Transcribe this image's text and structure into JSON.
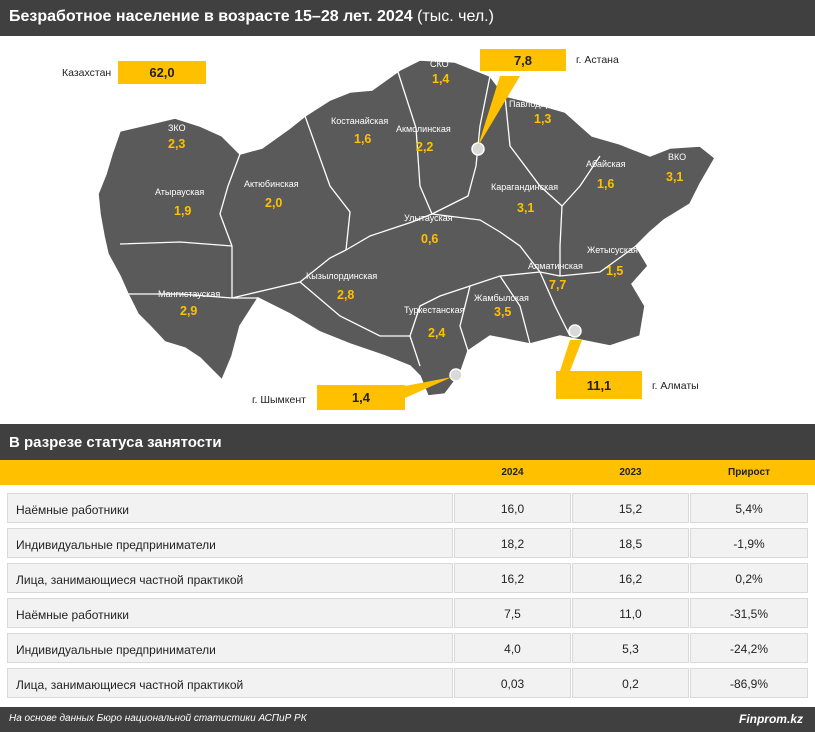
{
  "header": {
    "title_bold": "Безработное население в возрасте 15–28 лет. 2024",
    "title_unit": "(тыс. чел.)"
  },
  "colors": {
    "accent": "#ffc000",
    "dark": "#404040",
    "map_fill": "#5a5a5a",
    "map_border": "#ffffff"
  },
  "map": {
    "total": {
      "label": "Казахстан",
      "value": "62,0"
    },
    "regions": [
      {
        "name": "СКО",
        "value": "1,4"
      },
      {
        "name": "Костанайская",
        "value": "1,6"
      },
      {
        "name": "Акмолинская",
        "value": "2,2"
      },
      {
        "name": "Павлодарская",
        "value": "1,3"
      },
      {
        "name": "ЗКО",
        "value": "2,3"
      },
      {
        "name": "Атырауская",
        "value": "1,9"
      },
      {
        "name": "Актюбинская",
        "value": "2,0"
      },
      {
        "name": "Улытауская",
        "value": "0,6"
      },
      {
        "name": "Карагандинская",
        "value": "3,1"
      },
      {
        "name": "Абайская",
        "value": "1,6"
      },
      {
        "name": "ВКО",
        "value": "3,1"
      },
      {
        "name": "Жетысуская",
        "value": "1,5"
      },
      {
        "name": "Алматинская",
        "value": "7,7"
      },
      {
        "name": "Мангистауская",
        "value": "2,9"
      },
      {
        "name": "Кызылординская",
        "value": "2,8"
      },
      {
        "name": "Туркестанская",
        "value": "2,4"
      },
      {
        "name": "Жамбылская",
        "value": "3,5"
      }
    ],
    "cities": [
      {
        "name": "г. Астана",
        "value": "7,8"
      },
      {
        "name": "г. Шымкент",
        "value": "1,4"
      },
      {
        "name": "г. Алматы",
        "value": "11,1"
      }
    ]
  },
  "table": {
    "section_title": "В разрезе статуса занятости",
    "columns": [
      "2024",
      "2023",
      "Прирост"
    ],
    "rows": [
      {
        "label": "Наёмные работники",
        "v2024": "16,0",
        "v2023": "15,2",
        "growth": "5,4%"
      },
      {
        "label": "Индивидуальные предприниматели",
        "v2024": "18,2",
        "v2023": "18,5",
        "growth": "-1,9%"
      },
      {
        "label": "Лица, занимающиеся частной практикой",
        "v2024": "16,2",
        "v2023": "16,2",
        "growth": "0,2%"
      },
      {
        "label": "Наёмные работники",
        "v2024": "7,5",
        "v2023": "11,0",
        "growth": "-31,5%"
      },
      {
        "label": "Индивидуальные предприниматели",
        "v2024": "4,0",
        "v2023": "5,3",
        "growth": "-24,2%"
      },
      {
        "label": "Лица, занимающиеся частной практикой",
        "v2024": "0,03",
        "v2023": "0,2",
        "growth": "-86,9%"
      }
    ]
  },
  "footer": {
    "source": "На основе данных Бюро национальной статистики АСПиР РК",
    "brand": "Finprom.kz"
  }
}
